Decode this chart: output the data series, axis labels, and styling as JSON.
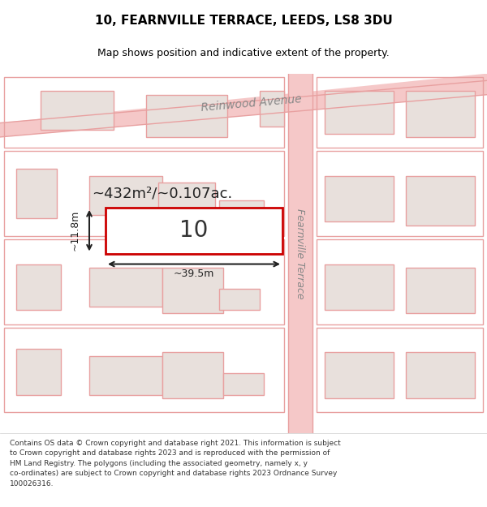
{
  "title": "10, FEARNVILLE TERRACE, LEEDS, LS8 3DU",
  "subtitle": "Map shows position and indicative extent of the property.",
  "footer_line1": "Contains OS data © Crown copyright and database right 2021. This information is subject",
  "footer_line2": "to Crown copyright and database rights 2023 and is reproduced with the permission of",
  "footer_line3": "HM Land Registry. The polygons (including the associated geometry, namely x, y",
  "footer_line4": "co-ordinates) are subject to Crown copyright and database rights 2023 Ordnance Survey",
  "footer_line5": "100026316.",
  "bg_color": "#f5f0ee",
  "map_bg_color": "#ffffff",
  "road_color": "#f5c8c8",
  "building_fill": "#e8e0dc",
  "building_stroke": "#e8a0a0",
  "highlight_stroke": "#cc0000",
  "highlight_fill": "#ffffff",
  "street_label_color": "#888888",
  "measure_color": "#222222",
  "area_text": "~432m²/~0.107ac.",
  "number_text": "10",
  "width_label": "~39.5m",
  "height_label": "~11.8m",
  "reinwood_label": "Reinwood Avenue",
  "fearnville_label": "Fearnville Terrace"
}
